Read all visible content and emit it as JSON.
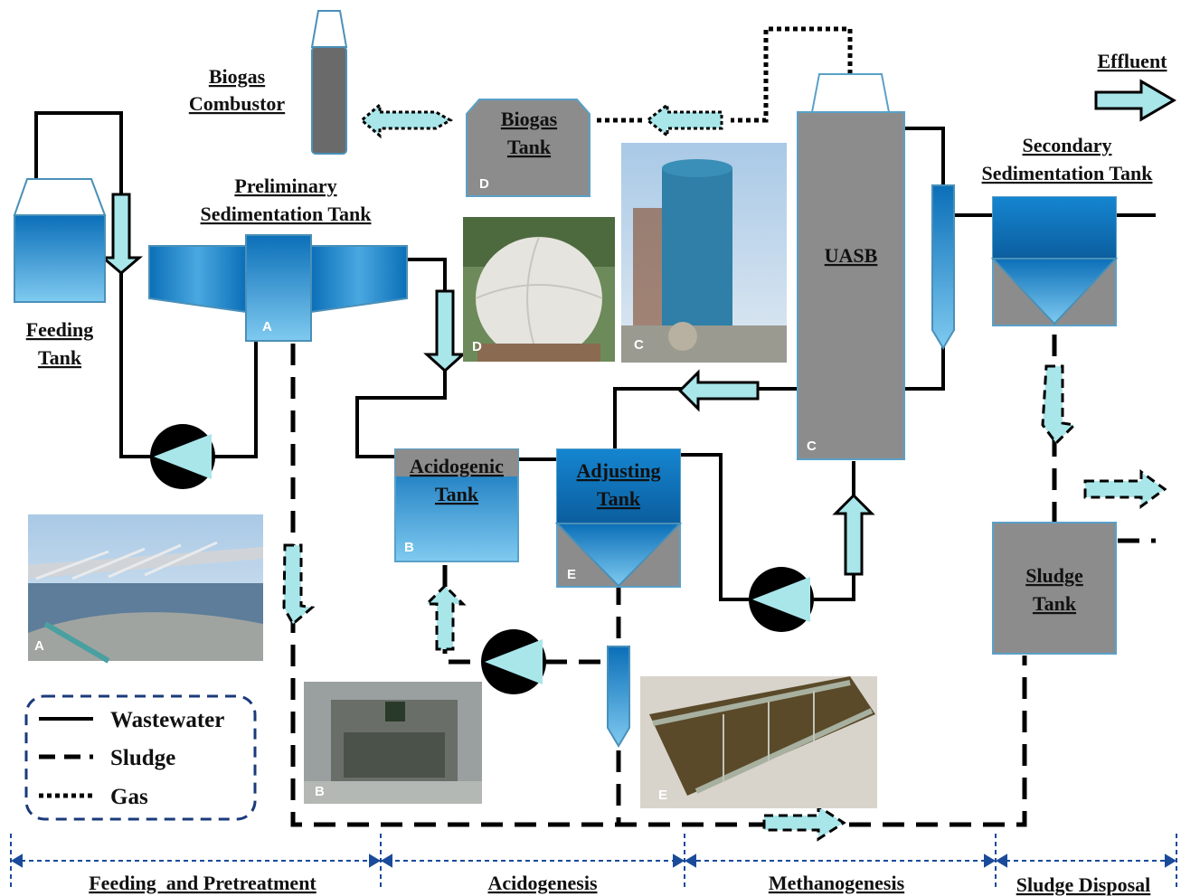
{
  "colors": {
    "water_blue": "#1a7fc8",
    "light_cyan": "#a8e6ea",
    "tank_gray": "#8c8c8c",
    "legend_border": "#1a3a7a"
  },
  "labels": {
    "biogas_combustor": [
      "Biogas",
      "Combustor"
    ],
    "biogas_tank": [
      "Biogas",
      "Tank"
    ],
    "effluent": "Effluent",
    "secondary_sedimentation": [
      "Secondary",
      "Sedimentation Tank"
    ],
    "preliminary_sedimentation": [
      "Preliminary",
      "Sedimentation Tank"
    ],
    "feeding_tank": [
      "Feeding",
      "Tank"
    ],
    "uasb": "UASB",
    "acidogenic_tank": [
      "Acidogenic",
      "Tank"
    ],
    "adjusting_tank": [
      "Adjusting",
      "Tank"
    ],
    "sludge_tank": [
      "Sludge",
      "Tank"
    ]
  },
  "unit_letters": {
    "a": "A",
    "b": "B",
    "c": "C",
    "d": "D",
    "e": "E"
  },
  "legend": {
    "wastewater": "Wastewater",
    "sludge": "Sludge",
    "gas": "Gas"
  },
  "stages": [
    "Feeding  and Pretreatment",
    "Acidogenesis",
    "Methanogenesis",
    "Sludge Disposal"
  ],
  "photos": [
    {
      "id": "photo-a",
      "icon": "sedimentation-tank-photo",
      "letter": "A"
    },
    {
      "id": "photo-b",
      "icon": "acidogenic-tank-photo",
      "letter": "B"
    },
    {
      "id": "photo-c",
      "icon": "uasb-tower-photo",
      "letter": "C"
    },
    {
      "id": "photo-d",
      "icon": "biogas-dome-photo",
      "letter": "D"
    },
    {
      "id": "photo-e",
      "icon": "adjusting-tank-photo",
      "letter": "E"
    }
  ]
}
